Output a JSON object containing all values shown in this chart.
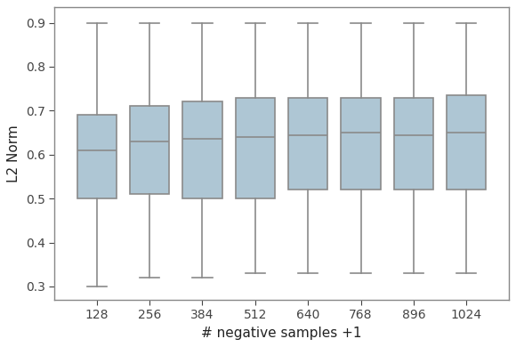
{
  "categories": [
    128,
    256,
    384,
    512,
    640,
    768,
    896,
    1024
  ],
  "boxes": [
    {
      "whislo": 0.3,
      "q1": 0.5,
      "med": 0.61,
      "q3": 0.69,
      "whishi": 0.9
    },
    {
      "whislo": 0.32,
      "q1": 0.51,
      "med": 0.63,
      "q3": 0.71,
      "whishi": 0.9
    },
    {
      "whislo": 0.32,
      "q1": 0.5,
      "med": 0.635,
      "q3": 0.72,
      "whishi": 0.9
    },
    {
      "whislo": 0.33,
      "q1": 0.5,
      "med": 0.64,
      "q3": 0.73,
      "whishi": 0.9
    },
    {
      "whislo": 0.33,
      "q1": 0.52,
      "med": 0.645,
      "q3": 0.73,
      "whishi": 0.9
    },
    {
      "whislo": 0.33,
      "q1": 0.52,
      "med": 0.65,
      "q3": 0.73,
      "whishi": 0.9
    },
    {
      "whislo": 0.33,
      "q1": 0.52,
      "med": 0.645,
      "q3": 0.73,
      "whishi": 0.9
    },
    {
      "whislo": 0.33,
      "q1": 0.52,
      "med": 0.65,
      "q3": 0.735,
      "whishi": 0.9
    }
  ],
  "box_color": "#aec6d4",
  "box_edge_color": "#8a8a8a",
  "median_color": "#8a8a8a",
  "whisker_color": "#8a8a8a",
  "cap_color": "#8a8a8a",
  "spine_color": "#888888",
  "ylabel": "L2 Norm",
  "xlabel": "# negative samples +1",
  "ylim": [
    0.27,
    0.935
  ],
  "yticks": [
    0.3,
    0.4,
    0.5,
    0.6,
    0.7,
    0.8,
    0.9
  ],
  "box_width": 0.75,
  "linewidth": 1.2,
  "figsize": [
    5.8,
    3.9
  ],
  "dpi": 100
}
